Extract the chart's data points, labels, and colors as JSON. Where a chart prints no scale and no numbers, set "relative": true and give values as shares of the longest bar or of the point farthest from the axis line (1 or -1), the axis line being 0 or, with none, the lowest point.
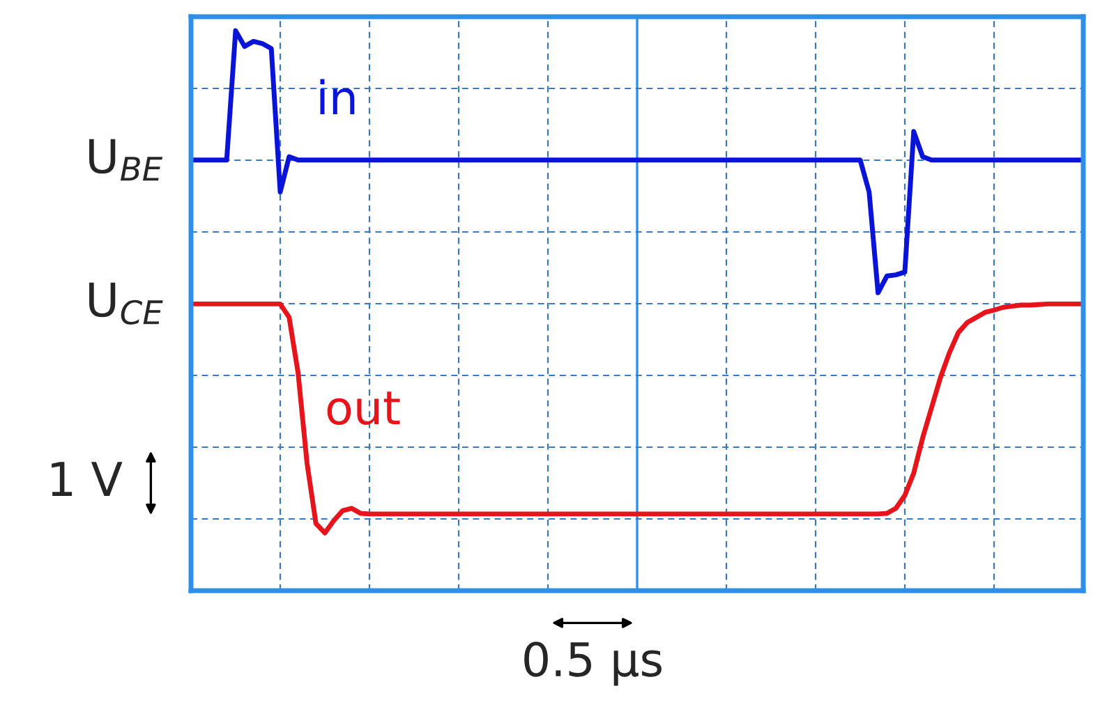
{
  "chart_data": {
    "type": "line",
    "relative": true,
    "grid": true,
    "line_style": "solid",
    "categories": [
      null,
      null,
      null,
      null,
      null,
      null,
      null,
      null,
      null,
      null,
      null,
      null,
      null,
      null,
      null,
      null,
      null,
      null,
      null,
      null,
      null,
      null,
      null,
      null,
      null,
      null,
      null,
      null,
      null,
      null,
      null,
      null,
      null,
      null,
      null,
      null,
      null,
      null,
      null,
      null,
      null,
      null,
      null,
      null,
      null,
      null,
      null,
      null,
      null,
      null,
      null,
      null,
      null,
      null,
      null,
      null,
      null,
      null,
      null,
      null,
      null,
      null,
      null,
      null,
      null,
      null,
      null,
      null,
      null,
      null,
      null,
      null,
      null,
      null,
      null,
      null,
      null,
      null,
      null,
      null,
      null,
      null,
      null,
      null,
      null,
      null,
      null,
      null,
      null,
      null,
      null,
      null,
      null,
      null,
      null,
      null,
      null,
      null,
      null,
      null,
      null
    ],
    "series": [
      {
        "name": "in",
        "color": "#0a14d8",
        "values": [
          0.769,
          0.769,
          0.769,
          0.769,
          0.769,
          1.0,
          0.972,
          0.981,
          0.977,
          0.968,
          0.712,
          0.775,
          0.769,
          0.769,
          0.769,
          0.769,
          0.769,
          0.769,
          0.769,
          0.769,
          0.769,
          0.769,
          0.769,
          0.769,
          0.769,
          0.769,
          0.769,
          0.769,
          0.769,
          0.769,
          0.769,
          0.769,
          0.769,
          0.769,
          0.769,
          0.769,
          0.769,
          0.769,
          0.769,
          0.769,
          0.769,
          0.769,
          0.769,
          0.769,
          0.769,
          0.769,
          0.769,
          0.769,
          0.769,
          0.769,
          0.769,
          0.769,
          0.769,
          0.769,
          0.769,
          0.769,
          0.769,
          0.769,
          0.769,
          0.769,
          0.769,
          0.769,
          0.769,
          0.769,
          0.769,
          0.769,
          0.769,
          0.769,
          0.769,
          0.769,
          0.769,
          0.769,
          0.769,
          0.769,
          0.769,
          0.769,
          0.712,
          0.532,
          0.562,
          0.564,
          0.569,
          0.82,
          0.775,
          0.769,
          0.769,
          0.769,
          0.769,
          0.769,
          0.769,
          0.769,
          0.769,
          0.769,
          0.769,
          0.769,
          0.769,
          0.769,
          0.769,
          0.769,
          0.769,
          0.769,
          0.769
        ]
      },
      {
        "name": "out",
        "color": "#e8141c",
        "values": [
          0.512,
          0.512,
          0.512,
          0.512,
          0.512,
          0.512,
          0.512,
          0.512,
          0.512,
          0.512,
          0.512,
          0.488,
          0.389,
          0.228,
          0.12,
          0.103,
          0.125,
          0.143,
          0.147,
          0.138,
          0.137,
          0.137,
          0.137,
          0.137,
          0.137,
          0.137,
          0.137,
          0.137,
          0.137,
          0.137,
          0.137,
          0.137,
          0.137,
          0.137,
          0.137,
          0.137,
          0.137,
          0.137,
          0.137,
          0.137,
          0.137,
          0.137,
          0.137,
          0.137,
          0.137,
          0.137,
          0.137,
          0.137,
          0.137,
          0.137,
          0.137,
          0.137,
          0.137,
          0.137,
          0.137,
          0.137,
          0.137,
          0.137,
          0.137,
          0.137,
          0.137,
          0.137,
          0.137,
          0.137,
          0.137,
          0.137,
          0.137,
          0.137,
          0.137,
          0.137,
          0.137,
          0.137,
          0.137,
          0.137,
          0.137,
          0.137,
          0.137,
          0.137,
          0.138,
          0.147,
          0.17,
          0.21,
          0.273,
          0.327,
          0.381,
          0.425,
          0.461,
          0.479,
          0.488,
          0.497,
          0.501,
          0.506,
          0.508,
          0.51,
          0.51,
          0.511,
          0.512,
          0.512,
          0.512,
          0.512,
          0.512
        ]
      }
    ],
    "annotations": [
      "U$_{BE}$",
      "U$_{CE}$",
      "1 V",
      "0.5 µs"
    ]
  }
}
